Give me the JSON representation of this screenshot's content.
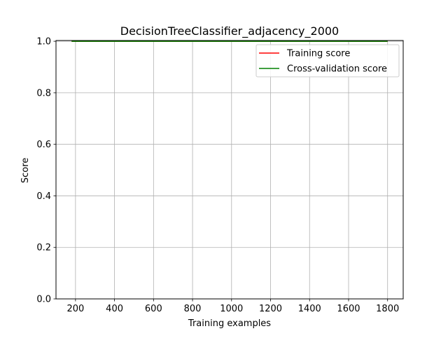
{
  "chart_data": {
    "type": "line",
    "title": "DecisionTreeClassifier_adjacency_2000",
    "xlabel": "Training examples",
    "ylabel": "Score",
    "xlim": [
      100,
      1880
    ],
    "ylim": [
      0.0,
      1.003
    ],
    "xticks": [
      200,
      400,
      600,
      800,
      1000,
      1200,
      1400,
      1600,
      1800
    ],
    "yticks": [
      0.0,
      0.2,
      0.4,
      0.6,
      0.8,
      1.0
    ],
    "grid": true,
    "legend": "top-right",
    "x": [
      180,
      1800
    ],
    "series": [
      {
        "name": "Training score",
        "color": "#ff0000",
        "values": [
          1.0,
          1.0
        ]
      },
      {
        "name": "Cross-validation score",
        "color": "#008000",
        "values": [
          1.0,
          1.0
        ]
      }
    ]
  }
}
